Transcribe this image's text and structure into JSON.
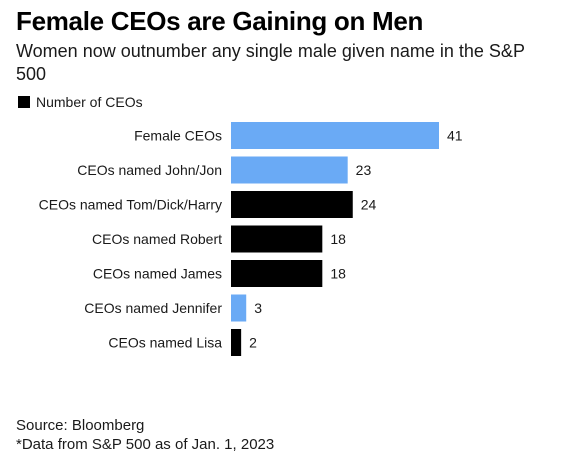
{
  "title": "Female CEOs are Gaining on Men",
  "subtitle": "Women now outnumber any single male given name in the S&P 500",
  "legend_label": "Number of CEOs",
  "footer": {
    "source": "Source: Bloomberg",
    "note": "*Data from S&P 500 as of Jan. 1, 2023"
  },
  "colors": {
    "female": "#6aaaf5",
    "male": "#000000"
  },
  "chart_data": {
    "type": "bar",
    "orientation": "horizontal",
    "title": "Female CEOs are Gaining on Men",
    "subtitle": "Women now outnumber any single male given name in the S&P 500",
    "categories": [
      "Female CEOs",
      "CEOs named John/Jon",
      "CEOs named Tom/Dick/Harry",
      "CEOs named Robert",
      "CEOs named James",
      "CEOs named Jennifer",
      "CEOs named Lisa"
    ],
    "values": [
      41,
      23,
      24,
      18,
      18,
      3,
      2
    ],
    "bar_colors": [
      "#6aaaf5",
      "#6aaaf5",
      "#000000",
      "#000000",
      "#000000",
      "#6aaaf5",
      "#000000"
    ],
    "series": [
      {
        "name": "Number of CEOs",
        "values": [
          41,
          23,
          24,
          18,
          18,
          3,
          2
        ]
      }
    ],
    "xlim": [
      0,
      41
    ],
    "data_labels": true,
    "grid": false,
    "legend": "top-left"
  }
}
